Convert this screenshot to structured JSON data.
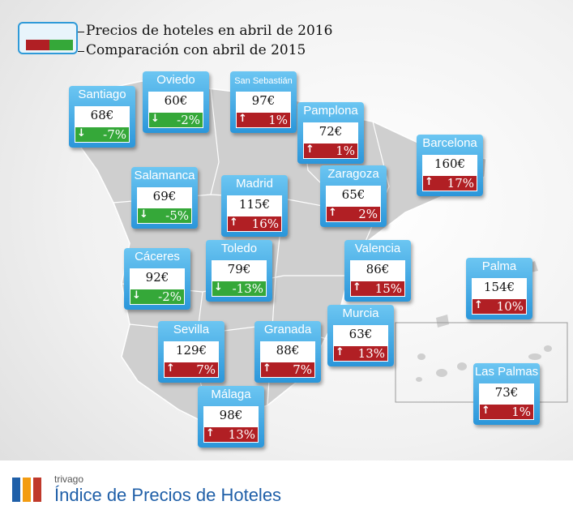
{
  "legend": {
    "prices_label": "Precios de hoteles en abril de 2016",
    "comparison_label": "Comparación con abril de 2015"
  },
  "chart_data": {
    "type": "table",
    "columns": [
      "city",
      "price",
      "change"
    ],
    "colors": {
      "increase": "#b11f24",
      "decrease": "#35a839",
      "card": "#2b96da"
    },
    "rows": [
      {
        "key": "santiago",
        "city": "Santiago",
        "price": "68€",
        "change": "-7%",
        "direction": "down"
      },
      {
        "key": "oviedo",
        "city": "Oviedo",
        "price": "60€",
        "change": "-2%",
        "direction": "down"
      },
      {
        "key": "san-sebastian",
        "city": "San Sebastián",
        "price": "97€",
        "change": "1%",
        "direction": "up"
      },
      {
        "key": "pamplona",
        "city": "Pamplona",
        "price": "72€",
        "change": "1%",
        "direction": "up"
      },
      {
        "key": "barcelona",
        "city": "Barcelona",
        "price": "160€",
        "change": "17%",
        "direction": "up"
      },
      {
        "key": "salamanca",
        "city": "Salamanca",
        "price": "69€",
        "change": "-5%",
        "direction": "down"
      },
      {
        "key": "madrid",
        "city": "Madrid",
        "price": "115€",
        "change": "16%",
        "direction": "up"
      },
      {
        "key": "zaragoza",
        "city": "Zaragoza",
        "price": "65€",
        "change": "2%",
        "direction": "up"
      },
      {
        "key": "caceres",
        "city": "Cáceres",
        "price": "92€",
        "change": "-2%",
        "direction": "down"
      },
      {
        "key": "toledo",
        "city": "Toledo",
        "price": "79€",
        "change": "-13%",
        "direction": "down"
      },
      {
        "key": "valencia",
        "city": "Valencia",
        "price": "86€",
        "change": "15%",
        "direction": "up"
      },
      {
        "key": "palma",
        "city": "Palma",
        "price": "154€",
        "change": "10%",
        "direction": "up"
      },
      {
        "key": "sevilla",
        "city": "Sevilla",
        "price": "129€",
        "change": "7%",
        "direction": "up"
      },
      {
        "key": "granada",
        "city": "Granada",
        "price": "88€",
        "change": "7%",
        "direction": "up"
      },
      {
        "key": "murcia",
        "city": "Murcia",
        "price": "63€",
        "change": "13%",
        "direction": "up"
      },
      {
        "key": "malaga",
        "city": "Málaga",
        "price": "98€",
        "change": "13%",
        "direction": "up"
      },
      {
        "key": "las-palmas",
        "city": "Las Palmas",
        "price": "73€",
        "change": "1%",
        "direction": "up"
      }
    ]
  },
  "footer": {
    "brand": "trivago",
    "title": "Índice de Precios de Hoteles",
    "logo_colors": [
      "#1f5fa8",
      "#f39c12",
      "#c0392b"
    ]
  }
}
